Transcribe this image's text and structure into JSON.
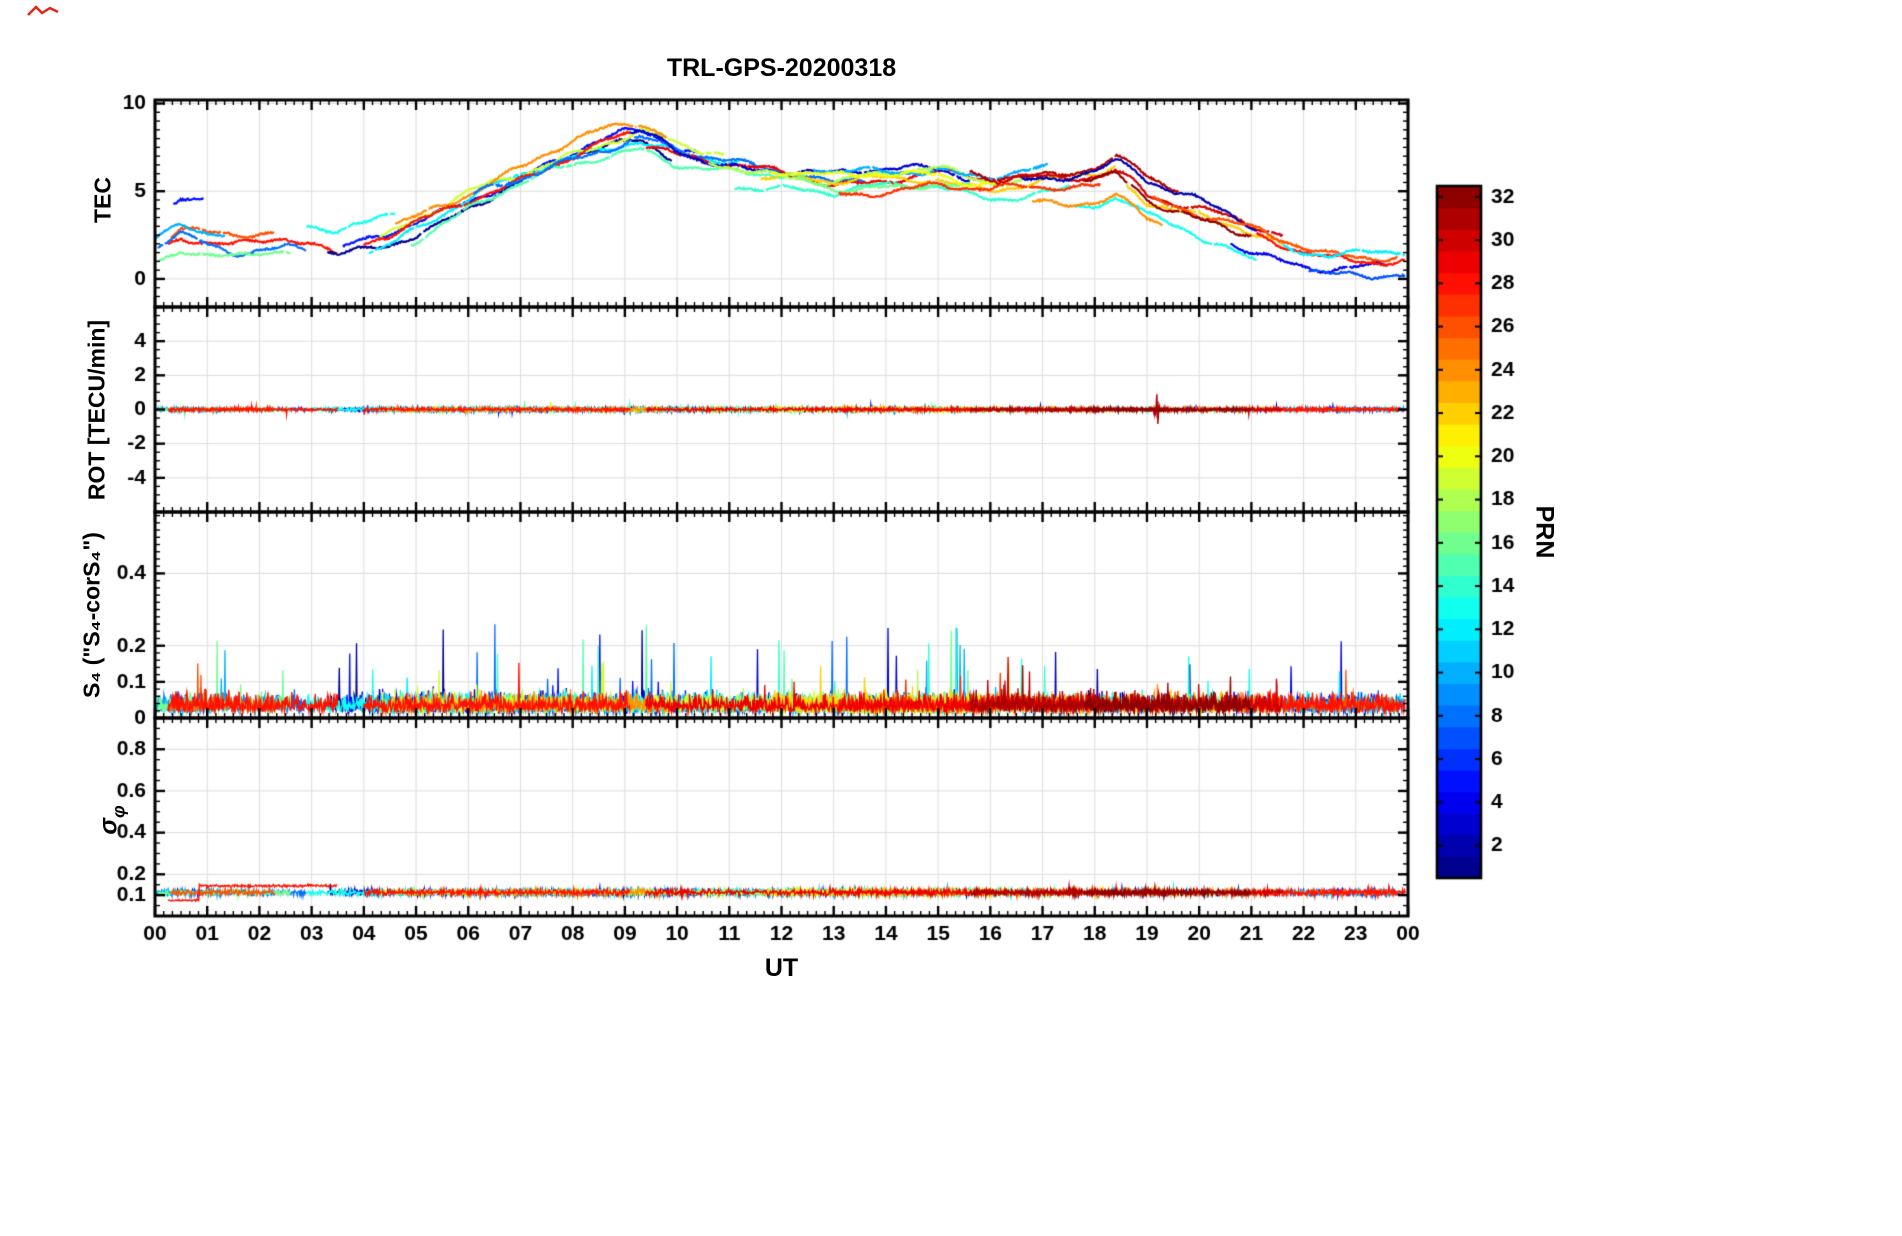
{
  "chart_data": {
    "type": "line",
    "title": "TRL-GPS-20200318",
    "xlabel": "UT",
    "x_hours_ticks": [
      "00",
      "01",
      "02",
      "03",
      "04",
      "05",
      "06",
      "07",
      "08",
      "09",
      "10",
      "11",
      "12",
      "13",
      "14",
      "15",
      "16",
      "17",
      "18",
      "19",
      "20",
      "21",
      "22",
      "23",
      "00"
    ],
    "colorbar": {
      "label": "PRN",
      "min": 1,
      "max": 32,
      "bands": 32,
      "colormap": "jet",
      "ticks": [
        2,
        4,
        6,
        8,
        10,
        12,
        14,
        16,
        18,
        20,
        22,
        24,
        26,
        28,
        30,
        32
      ]
    },
    "panels": [
      {
        "id": "tec",
        "ylabel": "TEC",
        "ylim": [
          -1.6,
          10.2
        ],
        "yticks": [
          0,
          5,
          10
        ],
        "minor_step": 0.5
      },
      {
        "id": "rot",
        "ylabel": "ROT [TECU/min]",
        "ylim": [
          -6,
          6
        ],
        "yticks": [
          -4,
          -2,
          0,
          2,
          4
        ],
        "minor_step": 0.5
      },
      {
        "id": "s4",
        "ylabel": "S₄ (\"S₄-corS₄\")",
        "ylim": [
          0,
          0.57
        ],
        "yticks": [
          0,
          0.1,
          0.2,
          0.4
        ],
        "minor_step": 0.02
      },
      {
        "id": "sigma_phi",
        "ylabel_sigma": "σ",
        "ylabel_phi": "φ",
        "ylim": [
          0,
          0.95
        ],
        "yticks": [
          0.1,
          0.2,
          0.4,
          0.6,
          0.8
        ],
        "minor_step": 0.05
      }
    ],
    "tec_base_curve": [
      [
        0,
        1.6
      ],
      [
        0.5,
        2.4
      ],
      [
        1,
        1.9
      ],
      [
        1.5,
        1.6
      ],
      [
        2,
        1.8
      ],
      [
        2.5,
        1.9
      ],
      [
        3,
        1.5
      ],
      [
        3.5,
        1.2
      ],
      [
        4,
        1.5
      ],
      [
        4.5,
        2.0
      ],
      [
        5,
        2.7
      ],
      [
        5.5,
        3.4
      ],
      [
        6,
        4.2
      ],
      [
        6.5,
        4.9
      ],
      [
        7,
        5.5
      ],
      [
        7.5,
        6.2
      ],
      [
        8,
        6.8
      ],
      [
        8.5,
        7.3
      ],
      [
        9,
        7.7
      ],
      [
        9.3,
        7.9
      ],
      [
        9.7,
        7.4
      ],
      [
        10,
        7.0
      ],
      [
        10.5,
        6.6
      ],
      [
        11,
        6.3
      ],
      [
        11.5,
        6.1
      ],
      [
        12,
        6.0
      ],
      [
        12.5,
        5.8
      ],
      [
        13,
        5.5
      ],
      [
        14,
        5.8
      ],
      [
        15,
        6.0
      ],
      [
        15.5,
        5.7
      ],
      [
        16,
        5.5
      ],
      [
        17,
        5.7
      ],
      [
        18,
        6.0
      ],
      [
        18.4,
        6.4
      ],
      [
        18.8,
        5.8
      ],
      [
        19,
        5.2
      ],
      [
        19.5,
        4.6
      ],
      [
        20,
        4.1
      ],
      [
        20.5,
        3.6
      ],
      [
        21,
        3.0
      ],
      [
        21.5,
        2.4
      ],
      [
        22,
        1.9
      ],
      [
        22.5,
        1.6
      ],
      [
        23,
        1.6
      ],
      [
        23.5,
        1.7
      ],
      [
        24,
        1.9
      ]
    ],
    "arcs": [
      [
        28,
        0.25,
        3.5,
        0.2
      ],
      [
        26,
        0.3,
        2.3,
        0.6
      ],
      [
        8,
        0.05,
        2.9,
        0.1
      ],
      [
        10,
        0,
        1.4,
        0.9
      ],
      [
        16,
        0.05,
        2.6,
        -0.5
      ],
      [
        5,
        0.35,
        0.95,
        2.2
      ],
      [
        13,
        2.9,
        4.6,
        1.4
      ],
      [
        1,
        3.3,
        9.9,
        0
      ],
      [
        5,
        3.6,
        10.4,
        0.4
      ],
      [
        12,
        4.1,
        11.2,
        0.2
      ],
      [
        19,
        4.3,
        10.9,
        0.5
      ],
      [
        24,
        4.6,
        9.8,
        0.9
      ],
      [
        28,
        4,
        9.1,
        0.3
      ],
      [
        15,
        4.9,
        12.6,
        -0.3
      ],
      [
        8,
        6.1,
        13.6,
        0.2
      ],
      [
        29,
        9.4,
        16.1,
        0
      ],
      [
        3,
        9.1,
        15.6,
        0.3
      ],
      [
        18,
        10.6,
        16.6,
        0.1
      ],
      [
        14,
        11.1,
        17.6,
        -0.7
      ],
      [
        22,
        11.6,
        18.4,
        -0.2
      ],
      [
        10,
        12.6,
        17.1,
        0.4
      ],
      [
        16,
        12.1,
        15.6,
        -0.4
      ],
      [
        27,
        13.1,
        18.1,
        -0.6
      ],
      [
        20,
        11.8,
        16.2,
        0.1
      ],
      [
        31,
        15.6,
        19.6,
        0.4
      ],
      [
        30,
        16.1,
        21.6,
        -0.1
      ],
      [
        2,
        16.6,
        21.1,
        0.2
      ],
      [
        13,
        17.6,
        21.1,
        -1.8
      ],
      [
        22,
        18.6,
        21.6,
        -0.6
      ],
      [
        26,
        19.1,
        23.8,
        -0.3
      ],
      [
        32,
        17.8,
        21,
        -0.5
      ],
      [
        24,
        16.8,
        19.3,
        -1.5
      ],
      [
        4,
        20.6,
        23.6,
        -1.2
      ],
      [
        28,
        21.1,
        23.95,
        -0.6
      ],
      [
        12,
        21.6,
        23.95,
        -0.4
      ],
      [
        7,
        22.1,
        23.95,
        -1.6
      ]
    ],
    "events": {
      "rot_spike": {
        "prn": 31,
        "t": 19.2,
        "amp": 1.0
      },
      "sigma_step": {
        "prn": 28,
        "t_step": 0.85,
        "low": 0.075,
        "high": 0.145
      }
    },
    "noise": {
      "tec_amp": 0.25,
      "rot_amp": 0.1,
      "s4_base": 0.042,
      "sigma_base": 0.108
    }
  }
}
